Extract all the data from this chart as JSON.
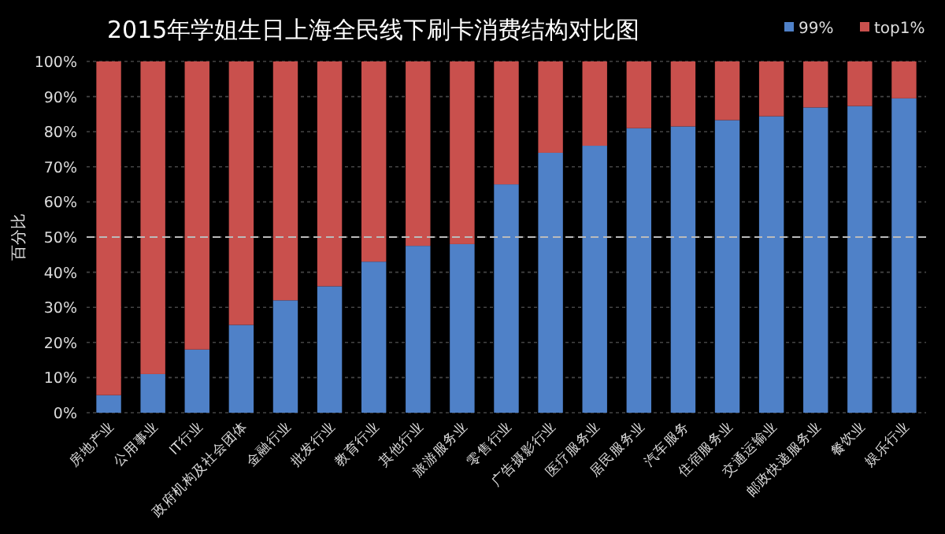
{
  "chart_data": {
    "type": "bar",
    "stacked": true,
    "title": "2015年学姐生日上海全民线下刷卡消费结构对比图",
    "ylabel": "百分比",
    "categories": [
      "房地产业",
      "公用事业",
      "IT行业",
      "政府机构及社会团体",
      "金融行业",
      "批发行业",
      "教育行业",
      "其他行业",
      "旅游服务业",
      "零售行业",
      "广告摄影行业",
      "医疗服务业",
      "居民服务业",
      "汽车服务",
      "住宿服务业",
      "交通运输业",
      "邮政快递服务业",
      "餐饮业",
      "娱乐行业"
    ],
    "series": [
      {
        "name": "99%",
        "color": "#4f81c8",
        "values": [
          5,
          11,
          18,
          25,
          32,
          36,
          43,
          47.5,
          48,
          65,
          74,
          76,
          81,
          81.5,
          83.3,
          84.4,
          86.9,
          87.3,
          89.5
        ]
      },
      {
        "name": "top1%",
        "color": "#c9504d",
        "values": [
          95,
          89,
          82,
          75,
          68,
          64,
          57,
          52.5,
          52,
          35,
          26,
          24,
          19,
          18.5,
          16.7,
          15.6,
          13.1,
          12.7,
          10.5
        ]
      }
    ],
    "ylim": [
      0,
      100
    ],
    "yticks": [
      {
        "value": 0,
        "label": "0%"
      },
      {
        "value": 10,
        "label": "10%"
      },
      {
        "value": 20,
        "label": "20%"
      },
      {
        "value": 30,
        "label": "30%"
      },
      {
        "value": 40,
        "label": "40%"
      },
      {
        "value": 50,
        "label": "50%"
      },
      {
        "value": 60,
        "label": "60%"
      },
      {
        "value": 70,
        "label": "70%"
      },
      {
        "value": 80,
        "label": "80%"
      },
      {
        "value": 90,
        "label": "90%"
      },
      {
        "value": 100,
        "label": "100%"
      }
    ],
    "ref_lines": [
      {
        "axis": "y",
        "value": 50,
        "color": "#bbbbbb",
        "line_style": "dashed"
      }
    ],
    "grid": "y",
    "legend": "top right"
  }
}
